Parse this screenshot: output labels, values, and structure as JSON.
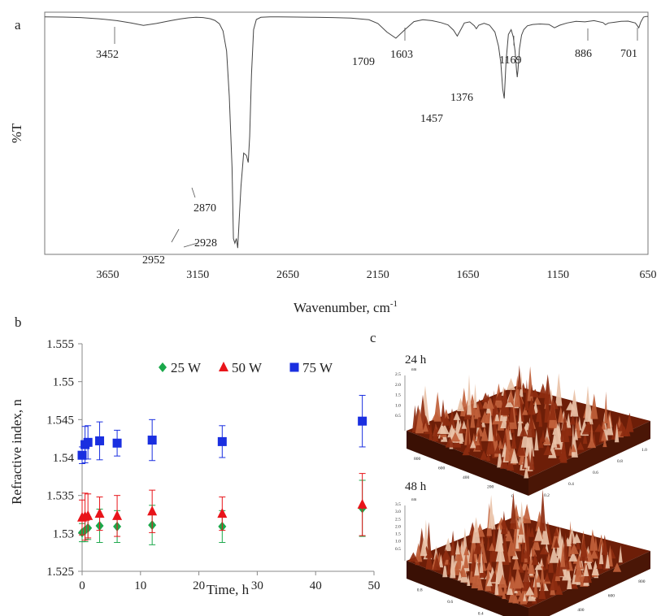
{
  "chart_data": [
    {
      "panel": "a",
      "type": "line",
      "xlabel": "Wavenumber, cm",
      "xlabel_sup": "-1",
      "ylabel": "%T",
      "xlim": [
        4000,
        650
      ],
      "x_ticks": [
        "3650",
        "3150",
        "2650",
        "2150",
        "1650",
        "1150",
        "650"
      ],
      "x": [
        4000,
        3900,
        3800,
        3700,
        3600,
        3520,
        3452,
        3380,
        3300,
        3250,
        3200,
        3160,
        3120,
        3080,
        3055,
        3030,
        3010,
        2990,
        2975,
        2960,
        2952,
        2944,
        2936,
        2928,
        2920,
        2910,
        2895,
        2880,
        2870,
        2862,
        2852,
        2840,
        2825,
        2800,
        2750,
        2700,
        2600,
        2500,
        2400,
        2300,
        2200,
        2150,
        2100,
        2050,
        2000,
        1950,
        1900,
        1850,
        1800,
        1760,
        1730,
        1709,
        1690,
        1670,
        1640,
        1615,
        1603,
        1590,
        1560,
        1530,
        1500,
        1480,
        1467,
        1457,
        1448,
        1438,
        1425,
        1410,
        1398,
        1388,
        1380,
        1376,
        1372,
        1364,
        1352,
        1340,
        1320,
        1290,
        1250,
        1200,
        1169,
        1140,
        1100,
        1050,
        1000,
        950,
        900,
        886,
        870,
        840,
        800,
        760,
        720,
        701,
        690,
        675,
        660,
        650
      ],
      "y": [
        99.4,
        99.3,
        99.1,
        98.6,
        97.8,
        96.8,
        95.8,
        96.6,
        97.8,
        98.5,
        99,
        99.2,
        99.1,
        98.6,
        97.9,
        96.5,
        93.5,
        85,
        66,
        36,
        6,
        4,
        6,
        2,
        14,
        28,
        42,
        41,
        38,
        49,
        75,
        94,
        98.3,
        99.2,
        99.4,
        99.4,
        99.3,
        99.2,
        99.1,
        98.9,
        98.2,
        96.6,
        93,
        90.4,
        94,
        97.4,
        98.2,
        97.8,
        97,
        96,
        93.8,
        91.3,
        93.9,
        96.8,
        97.3,
        95.7,
        94.4,
        95.9,
        96.7,
        95.9,
        93,
        87,
        80,
        69,
        65,
        81,
        92,
        94,
        91,
        85,
        77,
        74,
        77,
        86,
        91.7,
        94,
        95.6,
        96.2,
        96.4,
        96.2,
        94.8,
        95.9,
        96.8,
        97.5,
        97.3,
        97.8,
        97,
        96.1,
        96.8,
        97.1,
        97.5,
        97.6,
        96.8,
        94.8,
        97.2,
        99.3,
        99.6,
        99.6
      ],
      "peak_labels": [
        "3452",
        "1709",
        "1603",
        "1169",
        "886",
        "701",
        "1457",
        "1376",
        "2870",
        "2952",
        "2928"
      ]
    },
    {
      "panel": "b",
      "type": "scatter",
      "xlabel": "Time, h",
      "ylabel": "Refractive  index, n",
      "xlim": [
        0,
        50
      ],
      "ylim": [
        1.525,
        1.555
      ],
      "x_ticks": [
        "0",
        "10",
        "20",
        "30",
        "40",
        "50"
      ],
      "y_ticks": [
        "1.525",
        "1.53",
        "1.535",
        "1.54",
        "1.545",
        "1.55",
        "1.555"
      ],
      "legend": "top",
      "series": [
        {
          "name": "25 W",
          "marker": "diamond",
          "x": [
            0,
            0.5,
            1,
            3,
            6,
            12,
            24,
            48
          ],
          "y": [
            1.5301,
            1.5304,
            1.5307,
            1.531,
            1.5309,
            1.5311,
            1.5309,
            1.5333
          ],
          "err": [
            0.0012,
            0.0015,
            0.0015,
            0.0022,
            0.0021,
            0.0026,
            0.0021,
            0.0037
          ]
        },
        {
          "name": "50 W",
          "marker": "triangle",
          "x": [
            0,
            0.5,
            1,
            3,
            6,
            12,
            24,
            48
          ],
          "y": [
            1.5321,
            1.5322,
            1.5323,
            1.5326,
            1.5323,
            1.5329,
            1.5326,
            1.5338
          ],
          "err": [
            0.0023,
            0.0031,
            0.0029,
            0.0022,
            0.0027,
            0.0028,
            0.0022,
            0.0041
          ]
        },
        {
          "name": "75 W",
          "marker": "square",
          "x": [
            0,
            0.5,
            1,
            3,
            6,
            12,
            24,
            48
          ],
          "y": [
            1.5403,
            1.5417,
            1.542,
            1.5422,
            1.5419,
            1.5423,
            1.5421,
            1.5448
          ],
          "err": [
            0.0011,
            0.0024,
            0.0022,
            0.0025,
            0.0017,
            0.0027,
            0.0021,
            0.0034
          ]
        }
      ]
    }
  ],
  "panel_labels": {
    "a": "a",
    "b": "b",
    "c": "c"
  },
  "afm": {
    "top": {
      "label": "24 h",
      "axis_unit": "nm",
      "axis_ticks": [
        "2.5",
        "2.0",
        "1.5",
        "1.0",
        "0.5"
      ],
      "x_ticks": [
        "800",
        "600",
        "400",
        "200",
        "0"
      ],
      "y_ticks": [
        "0.2",
        "0.4",
        "0.6",
        "0.8",
        "1.0"
      ]
    },
    "bottom": {
      "label": "48 h",
      "axis_unit": "nm",
      "axis_ticks": [
        "3.5",
        "3.0",
        "2.5",
        "2.0",
        "1.5",
        "1.0",
        "0.5"
      ],
      "x_ticks": [
        "0.8",
        "0.6",
        "0.4",
        "0.2"
      ],
      "y_ticks": [
        "200",
        "400",
        "600",
        "800"
      ]
    }
  },
  "colors": {
    "s25": "#1aa84a",
    "s50": "#e8141a",
    "s75": "#1a2fe0",
    "afm_light": "#f0d8c8",
    "afm_mid": "#b54a22",
    "afm_dark": "#3a1004"
  }
}
